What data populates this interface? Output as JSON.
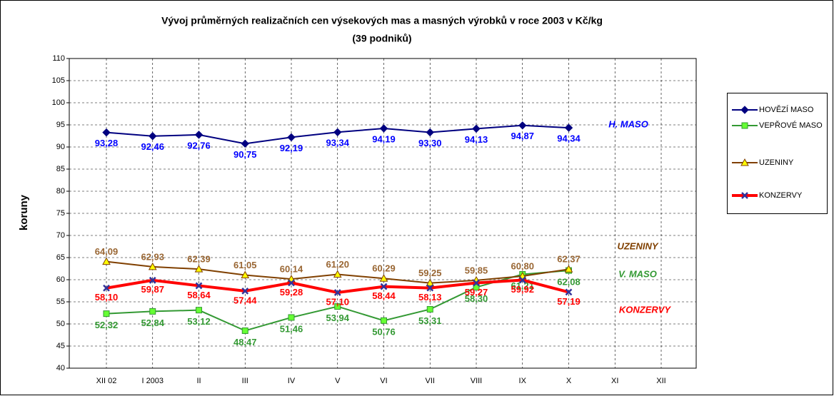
{
  "chart_data": {
    "type": "line",
    "title": "Vývoj průměrných realizačních cen výsekových mas a masných výrobků v roce 2003  v  Kč/kg",
    "subtitle": "(39 podniků)",
    "y_label": "koruny",
    "categories": [
      "XII  02",
      "I  2003",
      "II",
      "III",
      "IV",
      "V",
      "VI",
      "VII",
      "VIII",
      "IX",
      "X",
      "XI",
      "XII"
    ],
    "ylim": [
      40,
      110
    ],
    "yticks": [
      40,
      45,
      50,
      55,
      60,
      65,
      70,
      75,
      80,
      85,
      90,
      95,
      100,
      105,
      110
    ],
    "grid": true,
    "legend": "right",
    "series": [
      {
        "name": "HOVĚZÍ MASO",
        "color": "#000080",
        "marker": "diamond",
        "marker_color": "#000080",
        "label_color": "#0000ff",
        "line_width": 2,
        "values": [
          93.28,
          92.46,
          92.76,
          90.75,
          92.19,
          93.34,
          94.19,
          93.3,
          94.13,
          94.87,
          94.34,
          null,
          null
        ],
        "value_labels": [
          "93,28",
          "92,46",
          "92,76",
          "90,75",
          "92,19",
          "93,34",
          "94,19",
          "93,30",
          "94,13",
          "94,87",
          "94,34",
          null,
          null
        ]
      },
      {
        "name": "VEPŘOVÉ MASO",
        "color": "#339933",
        "marker": "square",
        "marker_color": "#66ff33",
        "label_color": "#339933",
        "line_width": 2,
        "values": [
          52.32,
          52.84,
          53.12,
          48.47,
          51.46,
          53.94,
          50.76,
          53.31,
          58.3,
          61.21,
          62.08,
          null,
          null
        ],
        "value_labels": [
          "52,32",
          "52,84",
          "53,12",
          "48,47",
          "51,46",
          "53,94",
          "50,76",
          "53,31",
          "58,30",
          "61,21",
          "62,08",
          null,
          null
        ]
      },
      {
        "name": "UZENINY",
        "color": "#804000",
        "marker": "triangle",
        "marker_color": "#ffff00",
        "label_color": "#996633",
        "line_width": 2,
        "values": [
          64.09,
          62.93,
          62.39,
          61.05,
          60.14,
          61.2,
          60.29,
          59.25,
          59.85,
          60.8,
          62.37,
          null,
          null
        ],
        "value_labels": [
          "64,09",
          "62,93",
          "62,39",
          "61,05",
          "60,14",
          "61,20",
          "60,29",
          "59,25",
          "59,85",
          "60,80",
          "62,37",
          null,
          null
        ]
      },
      {
        "name": "KONZERVY",
        "color": "#ff0000",
        "marker": "x",
        "marker_color": "#333399",
        "label_color": "#ff0000",
        "line_width": 4,
        "values": [
          58.1,
          59.87,
          58.64,
          57.44,
          59.28,
          57.1,
          58.44,
          58.13,
          59.27,
          59.92,
          57.19,
          null,
          null
        ],
        "value_labels": [
          "58,10",
          "59,87",
          "58,64",
          "57,44",
          "59,28",
          "57,10",
          "58,44",
          "58,13",
          "59,27",
          "59,92",
          "57,19",
          null,
          null
        ]
      }
    ],
    "annotations": [
      {
        "text": "H. MASO",
        "color": "#0000ff"
      },
      {
        "text": "UZENINY",
        "color": "#804000"
      },
      {
        "text": "V. MASO",
        "color": "#339933"
      },
      {
        "text": "KONZERVY",
        "color": "#ff0000"
      }
    ]
  }
}
